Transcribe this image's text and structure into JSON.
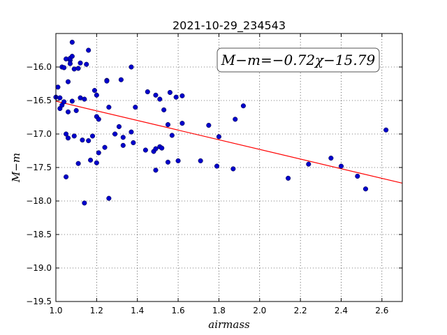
{
  "chart_data": {
    "type": "scatter",
    "title": "2021-10-29_234543",
    "xlabel": "airmass",
    "ylabel": "M−m",
    "xlim": [
      1.0,
      2.7
    ],
    "ylim": [
      -19.5,
      -15.5
    ],
    "y_inverted": false,
    "xticks": [
      1.0,
      1.2,
      1.4,
      1.6,
      1.8,
      2.0,
      2.2,
      2.4,
      2.6
    ],
    "xtick_labels": [
      "1.0",
      "1.2",
      "1.4",
      "1.6",
      "1.8",
      "2.0",
      "2.2",
      "2.4",
      "2.6"
    ],
    "yticks": [
      -16.0,
      -16.5,
      -17.0,
      -17.5,
      -18.0,
      -18.5,
      -19.0,
      -19.5
    ],
    "ytick_labels": [
      "−16.0",
      "−16.5",
      "−17.0",
      "−17.5",
      "−18.0",
      "−18.5",
      "−19.0",
      "−19.5"
    ],
    "grid": true,
    "annotation": "M−m=−0.72χ−15.79",
    "fit_line": {
      "slope": -0.72,
      "intercept": -15.79,
      "color": "#ff0000"
    },
    "point_color": "#0000cc",
    "points": [
      [
        1.0,
        -16.45
      ],
      [
        1.01,
        -16.3
      ],
      [
        1.02,
        -16.46
      ],
      [
        1.02,
        -16.62
      ],
      [
        1.03,
        -16.0
      ],
      [
        1.03,
        -16.57
      ],
      [
        1.04,
        -16.01
      ],
      [
        1.04,
        -16.52
      ],
      [
        1.05,
        -15.88
      ],
      [
        1.05,
        -17.0
      ],
      [
        1.05,
        -17.64
      ],
      [
        1.06,
        -16.22
      ],
      [
        1.06,
        -16.67
      ],
      [
        1.06,
        -17.06
      ],
      [
        1.07,
        -15.9
      ],
      [
        1.07,
        -15.95
      ],
      [
        1.07,
        -15.87
      ],
      [
        1.08,
        -15.63
      ],
      [
        1.08,
        -15.84
      ],
      [
        1.08,
        -16.51
      ],
      [
        1.09,
        -17.03
      ],
      [
        1.09,
        -16.03
      ],
      [
        1.1,
        -16.65
      ],
      [
        1.11,
        -16.02
      ],
      [
        1.11,
        -17.44
      ],
      [
        1.12,
        -15.94
      ],
      [
        1.12,
        -16.46
      ],
      [
        1.13,
        -17.09
      ],
      [
        1.14,
        -16.48
      ],
      [
        1.14,
        -18.03
      ],
      [
        1.15,
        -15.96
      ],
      [
        1.16,
        -15.75
      ],
      [
        1.16,
        -17.1
      ],
      [
        1.17,
        -17.39
      ],
      [
        1.18,
        -17.03
      ],
      [
        1.19,
        -16.35
      ],
      [
        1.2,
        -16.42
      ],
      [
        1.2,
        -16.74
      ],
      [
        1.2,
        -17.43
      ],
      [
        1.21,
        -16.78
      ],
      [
        1.21,
        -17.28
      ],
      [
        1.24,
        -17.2
      ],
      [
        1.25,
        -16.2
      ],
      [
        1.25,
        -16.21
      ],
      [
        1.26,
        -16.6
      ],
      [
        1.26,
        -17.96
      ],
      [
        1.29,
        -17.0
      ],
      [
        1.31,
        -16.89
      ],
      [
        1.32,
        -16.19
      ],
      [
        1.33,
        -17.05
      ],
      [
        1.33,
        -17.17
      ],
      [
        1.37,
        -16.0
      ],
      [
        1.37,
        -16.97
      ],
      [
        1.38,
        -17.13
      ],
      [
        1.39,
        -16.6
      ],
      [
        1.44,
        -17.24
      ],
      [
        1.45,
        -16.37
      ],
      [
        1.48,
        -17.26
      ],
      [
        1.49,
        -17.54
      ],
      [
        1.49,
        -17.22
      ],
      [
        1.49,
        -16.42
      ],
      [
        1.51,
        -16.48
      ],
      [
        1.51,
        -17.19
      ],
      [
        1.52,
        -17.21
      ],
      [
        1.53,
        -16.64
      ],
      [
        1.55,
        -16.86
      ],
      [
        1.55,
        -17.42
      ],
      [
        1.56,
        -16.38
      ],
      [
        1.57,
        -17.02
      ],
      [
        1.59,
        -16.45
      ],
      [
        1.6,
        -17.4
      ],
      [
        1.62,
        -16.43
      ],
      [
        1.62,
        -16.84
      ],
      [
        1.71,
        -17.4
      ],
      [
        1.75,
        -16.87
      ],
      [
        1.79,
        -17.48
      ],
      [
        1.8,
        -17.04
      ],
      [
        1.87,
        -17.52
      ],
      [
        1.88,
        -16.78
      ],
      [
        1.92,
        -16.58
      ],
      [
        2.14,
        -17.66
      ],
      [
        2.24,
        -17.45
      ],
      [
        2.35,
        -17.36
      ],
      [
        2.4,
        -17.48
      ],
      [
        2.48,
        -17.63
      ],
      [
        2.52,
        -17.82
      ],
      [
        2.62,
        -16.94
      ]
    ]
  }
}
